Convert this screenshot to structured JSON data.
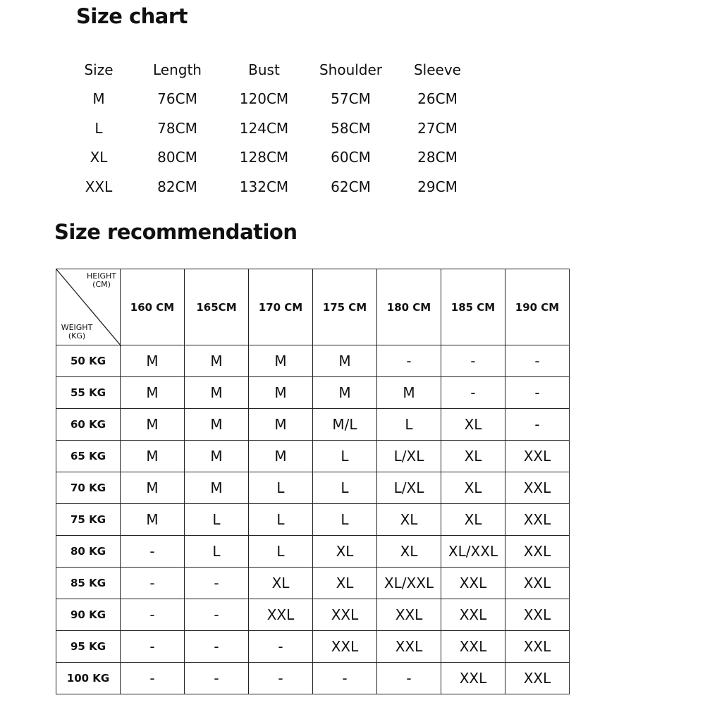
{
  "size_chart": {
    "title": "Size chart",
    "headers": [
      "Size",
      "Length",
      "Bust",
      "Shoulder",
      "Sleeve"
    ],
    "rows": [
      [
        "M",
        "76CM",
        "120CM",
        "57CM",
        "26CM"
      ],
      [
        "L",
        "78CM",
        "124CM",
        "58CM",
        "27CM"
      ],
      [
        "XL",
        "80CM",
        "128CM",
        "60CM",
        "28CM"
      ],
      [
        "XXL",
        "82CM",
        "132CM",
        "62CM",
        "29CM"
      ]
    ]
  },
  "recommendation": {
    "title": "Size recommendation",
    "corner_height": "HEIGHT (CM)",
    "corner_weight": "WEIGHT (KG)",
    "heights": [
      "160 CM",
      "165CM",
      "170 CM",
      "175 CM",
      "180 CM",
      "185 CM",
      "190 CM"
    ],
    "rows": [
      {
        "weight": "50 KG",
        "sizes": [
          "M",
          "M",
          "M",
          "M",
          "-",
          "-",
          "-"
        ]
      },
      {
        "weight": "55 KG",
        "sizes": [
          "M",
          "M",
          "M",
          "M",
          "M",
          "-",
          "-"
        ]
      },
      {
        "weight": "60 KG",
        "sizes": [
          "M",
          "M",
          "M",
          "M/L",
          "L",
          "XL",
          "-"
        ]
      },
      {
        "weight": "65 KG",
        "sizes": [
          "M",
          "M",
          "M",
          "L",
          "L/XL",
          "XL",
          "XXL"
        ]
      },
      {
        "weight": "70 KG",
        "sizes": [
          "M",
          "M",
          "L",
          "L",
          "L/XL",
          "XL",
          "XXL"
        ]
      },
      {
        "weight": "75 KG",
        "sizes": [
          "M",
          "L",
          "L",
          "L",
          "XL",
          "XL",
          "XXL"
        ]
      },
      {
        "weight": "80 KG",
        "sizes": [
          "-",
          "L",
          "L",
          "XL",
          "XL",
          "XL/XXL",
          "XXL"
        ]
      },
      {
        "weight": "85 KG",
        "sizes": [
          "-",
          "-",
          "XL",
          "XL",
          "XL/XXL",
          "XXL",
          "XXL"
        ]
      },
      {
        "weight": "90 KG",
        "sizes": [
          "-",
          "-",
          "XXL",
          "XXL",
          "XXL",
          "XXL",
          "XXL"
        ]
      },
      {
        "weight": "95 KG",
        "sizes": [
          "-",
          "-",
          "-",
          "XXL",
          "XXL",
          "XXL",
          "XXL"
        ]
      },
      {
        "weight": "100 KG",
        "sizes": [
          "-",
          "-",
          "-",
          "-",
          "-",
          "XXL",
          "XXL"
        ]
      }
    ]
  }
}
